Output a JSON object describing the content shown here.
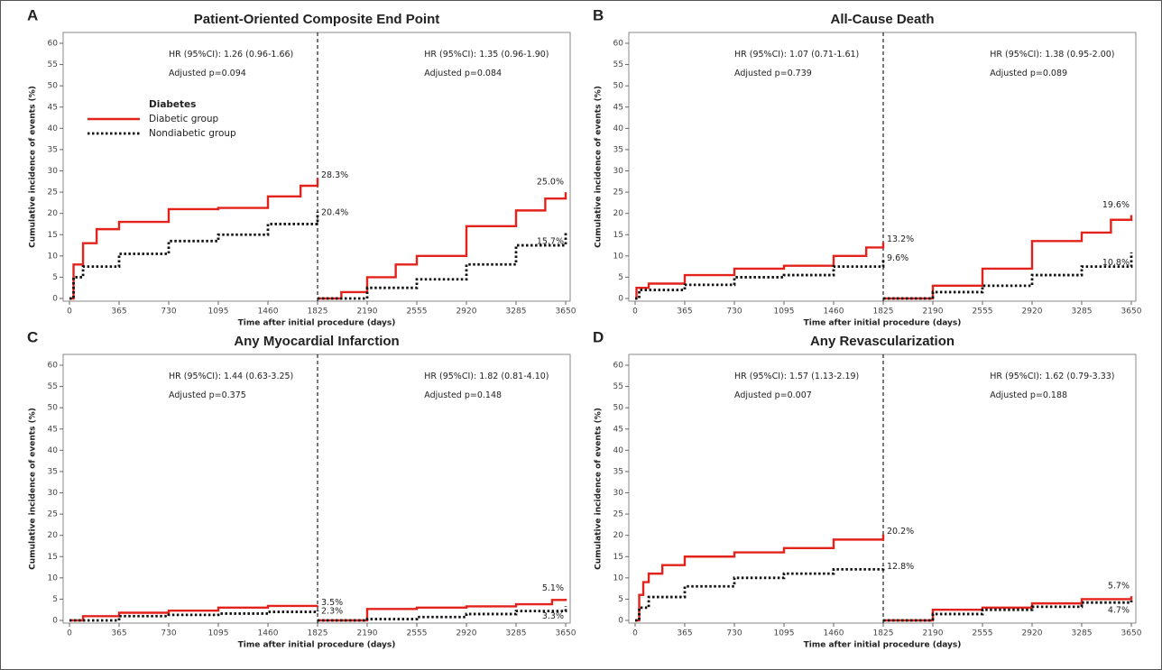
{
  "chart_data": [
    {
      "type": "line",
      "panel": "A",
      "title": "Patient-Oriented Composite End Point",
      "xlabel": "Time after initial procedure (days)",
      "ylabel": "Cumulative incidence of events (%)",
      "step": true,
      "landmark": 1825,
      "xlim": [
        0,
        3650
      ],
      "xticks": [
        0,
        365,
        730,
        1095,
        1460,
        1825,
        2190,
        2555,
        2920,
        3285,
        3650
      ],
      "ylim": [
        0,
        60
      ],
      "yticks": [
        0,
        5,
        10,
        15,
        20,
        25,
        30,
        35,
        40,
        45,
        50,
        55,
        60
      ],
      "legend": "upper left",
      "legend_title": "Diabetes",
      "annotations": [
        [
          "HR (95%CI): 1.26 (0.96-1.66)",
          "Adjusted p=0.094"
        ],
        [
          "HR (95%CI): 1.35 (0.96-1.90)",
          "Adjusted p=0.084"
        ]
      ],
      "series": [
        {
          "name": "Diabetic group",
          "color": "#e3231b",
          "style": "solid",
          "x": [
            0,
            30,
            100,
            200,
            365,
            730,
            1095,
            1460,
            1700,
            1825,
            1825,
            1825,
            2000,
            2190,
            2400,
            2555,
            2920,
            3285,
            3500,
            3650
          ],
          "values": [
            0,
            8,
            13,
            16.3,
            18,
            21,
            21.3,
            24,
            26.5,
            28.3,
            null,
            0,
            1.5,
            5,
            8,
            10,
            17,
            20.7,
            23.5,
            25.0
          ],
          "value_labels": [
            null,
            null,
            null,
            null,
            null,
            null,
            null,
            null,
            null,
            "28.3%",
            null,
            null,
            null,
            null,
            null,
            null,
            null,
            null,
            null,
            "25.0%"
          ]
        },
        {
          "name": "Nondiabetic group",
          "color": "#111111",
          "style": "dotted",
          "x": [
            0,
            30,
            100,
            365,
            730,
            1095,
            1460,
            1825,
            1825,
            1825,
            2190,
            2555,
            2920,
            3285,
            3650
          ],
          "values": [
            0,
            5,
            7.5,
            10.5,
            13.5,
            15,
            17.5,
            20.4,
            null,
            0,
            2.5,
            4.5,
            8,
            12.5,
            15.7
          ],
          "value_labels": [
            null,
            null,
            null,
            null,
            null,
            null,
            null,
            "20.4%",
            null,
            null,
            null,
            null,
            null,
            null,
            "15.7%"
          ]
        }
      ]
    },
    {
      "type": "line",
      "panel": "B",
      "title": "All-Cause Death",
      "xlabel": "Time after initial procedure (days)",
      "ylabel": "Cumulative incidence of events (%)",
      "step": true,
      "landmark": 1825,
      "xlim": [
        0,
        3650
      ],
      "xticks": [
        0,
        365,
        730,
        1095,
        1460,
        1825,
        2190,
        2555,
        2920,
        3285,
        3650
      ],
      "ylim": [
        0,
        60
      ],
      "yticks": [
        0,
        5,
        10,
        15,
        20,
        25,
        30,
        35,
        40,
        45,
        50,
        55,
        60
      ],
      "annotations": [
        [
          "HR (95%CI): 1.07 (0.71-1.61)",
          "Adjusted p=0.739"
        ],
        [
          "HR (95%CI): 1.38 (0.95-2.00)",
          "Adjusted p=0.089"
        ]
      ],
      "series": [
        {
          "name": "Diabetic group",
          "color": "#e3231b",
          "style": "solid",
          "x": [
            0,
            10,
            100,
            365,
            730,
            1095,
            1460,
            1700,
            1825,
            1825,
            1825,
            2190,
            2555,
            2920,
            3285,
            3500,
            3650
          ],
          "values": [
            0,
            2.5,
            3.5,
            5.5,
            7,
            7.7,
            10,
            12,
            13.2,
            null,
            0,
            3,
            7,
            13.5,
            15.5,
            18.5,
            19.6
          ],
          "value_labels": [
            null,
            null,
            null,
            null,
            null,
            null,
            null,
            null,
            "13.2%",
            null,
            null,
            null,
            null,
            null,
            null,
            null,
            "19.6%"
          ]
        },
        {
          "name": "Nondiabetic group",
          "color": "#111111",
          "style": "dotted",
          "x": [
            0,
            30,
            365,
            730,
            1095,
            1460,
            1825,
            1825,
            1825,
            2190,
            2555,
            2920,
            3285,
            3650
          ],
          "values": [
            0,
            2,
            3.2,
            5,
            5.5,
            7.5,
            9.6,
            null,
            0,
            1.5,
            3,
            5.5,
            7.5,
            10.8
          ],
          "value_labels": [
            null,
            null,
            null,
            null,
            null,
            null,
            "9.6%",
            null,
            null,
            null,
            null,
            null,
            null,
            "10.8%"
          ]
        }
      ]
    },
    {
      "type": "line",
      "panel": "C",
      "title": "Any Myocardial Infarction",
      "xlabel": "Time after initial procedure (days)",
      "ylabel": "Cumulative incidence of events (%)",
      "step": true,
      "landmark": 1825,
      "xlim": [
        0,
        3650
      ],
      "xticks": [
        0,
        365,
        730,
        1095,
        1460,
        1825,
        2190,
        2555,
        2920,
        3285,
        3650
      ],
      "ylim": [
        0,
        60
      ],
      "yticks": [
        0,
        5,
        10,
        15,
        20,
        25,
        30,
        35,
        40,
        45,
        50,
        55,
        60
      ],
      "annotations": [
        [
          "HR (95%CI): 1.44 (0.63-3.25)",
          "Adjusted p=0.375"
        ],
        [
          "HR (95%CI): 1.82 (0.81-4.10)",
          "Adjusted p=0.148"
        ]
      ],
      "series": [
        {
          "name": "Diabetic group",
          "color": "#e3231b",
          "style": "solid",
          "x": [
            0,
            100,
            365,
            730,
            1095,
            1460,
            1825,
            1825,
            1825,
            2190,
            2555,
            2920,
            3285,
            3550,
            3650
          ],
          "values": [
            0,
            1,
            1.8,
            2.3,
            3,
            3.4,
            3.5,
            null,
            0,
            2.7,
            3,
            3.3,
            3.8,
            4.8,
            5.1
          ],
          "value_labels": [
            null,
            null,
            null,
            null,
            null,
            null,
            "3.5%",
            null,
            null,
            null,
            null,
            null,
            null,
            null,
            "5.1%"
          ]
        },
        {
          "name": "Nondiabetic group",
          "color": "#111111",
          "style": "dotted",
          "x": [
            0,
            365,
            730,
            1095,
            1460,
            1825,
            1825,
            1825,
            2190,
            2555,
            2920,
            3285,
            3650
          ],
          "values": [
            0,
            1,
            1.3,
            1.6,
            2,
            2.3,
            null,
            0,
            0.3,
            0.8,
            1.5,
            2.2,
            3.3
          ],
          "value_labels": [
            null,
            null,
            null,
            null,
            null,
            "2.3%",
            null,
            null,
            null,
            null,
            null,
            null,
            "3.3%"
          ]
        }
      ]
    },
    {
      "type": "line",
      "panel": "D",
      "title": "Any Revascularization",
      "xlabel": "Time after initial procedure (days)",
      "ylabel": "Cumulative incidence of events (%)",
      "step": true,
      "landmark": 1825,
      "xlim": [
        0,
        3650
      ],
      "xticks": [
        0,
        365,
        730,
        1095,
        1460,
        1825,
        2190,
        2555,
        2920,
        3285,
        3650
      ],
      "ylim": [
        0,
        60
      ],
      "yticks": [
        0,
        5,
        10,
        15,
        20,
        25,
        30,
        35,
        40,
        45,
        50,
        55,
        60
      ],
      "annotations": [
        [
          "HR (95%CI): 1.57 (1.13-2.19)",
          "Adjusted p=0.007"
        ],
        [
          "HR (95%CI): 1.62 (0.79-3.33)",
          "Adjusted p=0.188"
        ]
      ],
      "series": [
        {
          "name": "Diabetic group",
          "color": "#e3231b",
          "style": "solid",
          "x": [
            0,
            30,
            60,
            100,
            200,
            365,
            730,
            1095,
            1460,
            1825,
            1825,
            1825,
            2190,
            2555,
            2920,
            3285,
            3650
          ],
          "values": [
            0,
            6,
            9,
            11,
            13,
            15,
            16,
            17,
            19,
            20.2,
            null,
            0,
            2.5,
            3,
            4,
            5,
            5.7
          ],
          "value_labels": [
            null,
            null,
            null,
            null,
            null,
            null,
            null,
            null,
            null,
            "20.2%",
            null,
            null,
            null,
            null,
            null,
            null,
            "5.7%"
          ]
        },
        {
          "name": "Nondiabetic group",
          "color": "#111111",
          "style": "dotted",
          "x": [
            0,
            30,
            100,
            365,
            730,
            1095,
            1460,
            1825,
            1825,
            1825,
            2190,
            2555,
            2920,
            3285,
            3650
          ],
          "values": [
            0,
            3,
            5.5,
            8,
            10,
            11,
            12,
            12.8,
            null,
            0,
            1.5,
            2.5,
            3.2,
            4.2,
            4.7
          ],
          "value_labels": [
            null,
            null,
            null,
            null,
            null,
            null,
            null,
            "12.8%",
            null,
            null,
            null,
            null,
            null,
            null,
            "4.7%"
          ]
        }
      ]
    }
  ]
}
